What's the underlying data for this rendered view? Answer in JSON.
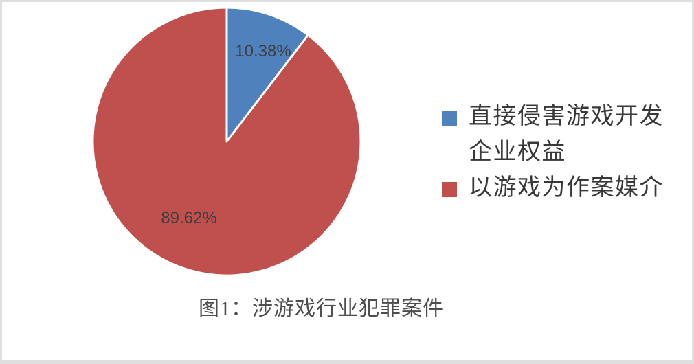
{
  "chart_data": {
    "type": "pie",
    "title": "图1：涉游戏行业犯罪案件",
    "start_angle_deg": 0,
    "direction": "clockwise",
    "legend_position": "right",
    "grid": false,
    "slices": [
      {
        "label": "直接侵害游戏开发企业权益",
        "value": 10.38,
        "pct_label": "10.38%",
        "color": "#4F81BD"
      },
      {
        "label": "以游戏为作案媒介",
        "value": 89.62,
        "pct_label": "89.62%",
        "color": "#C0504D"
      }
    ],
    "data_label_color": "#3F3F3F"
  },
  "frame": {
    "background": "#FFFFFF",
    "border_color": "#DFDFDF"
  }
}
